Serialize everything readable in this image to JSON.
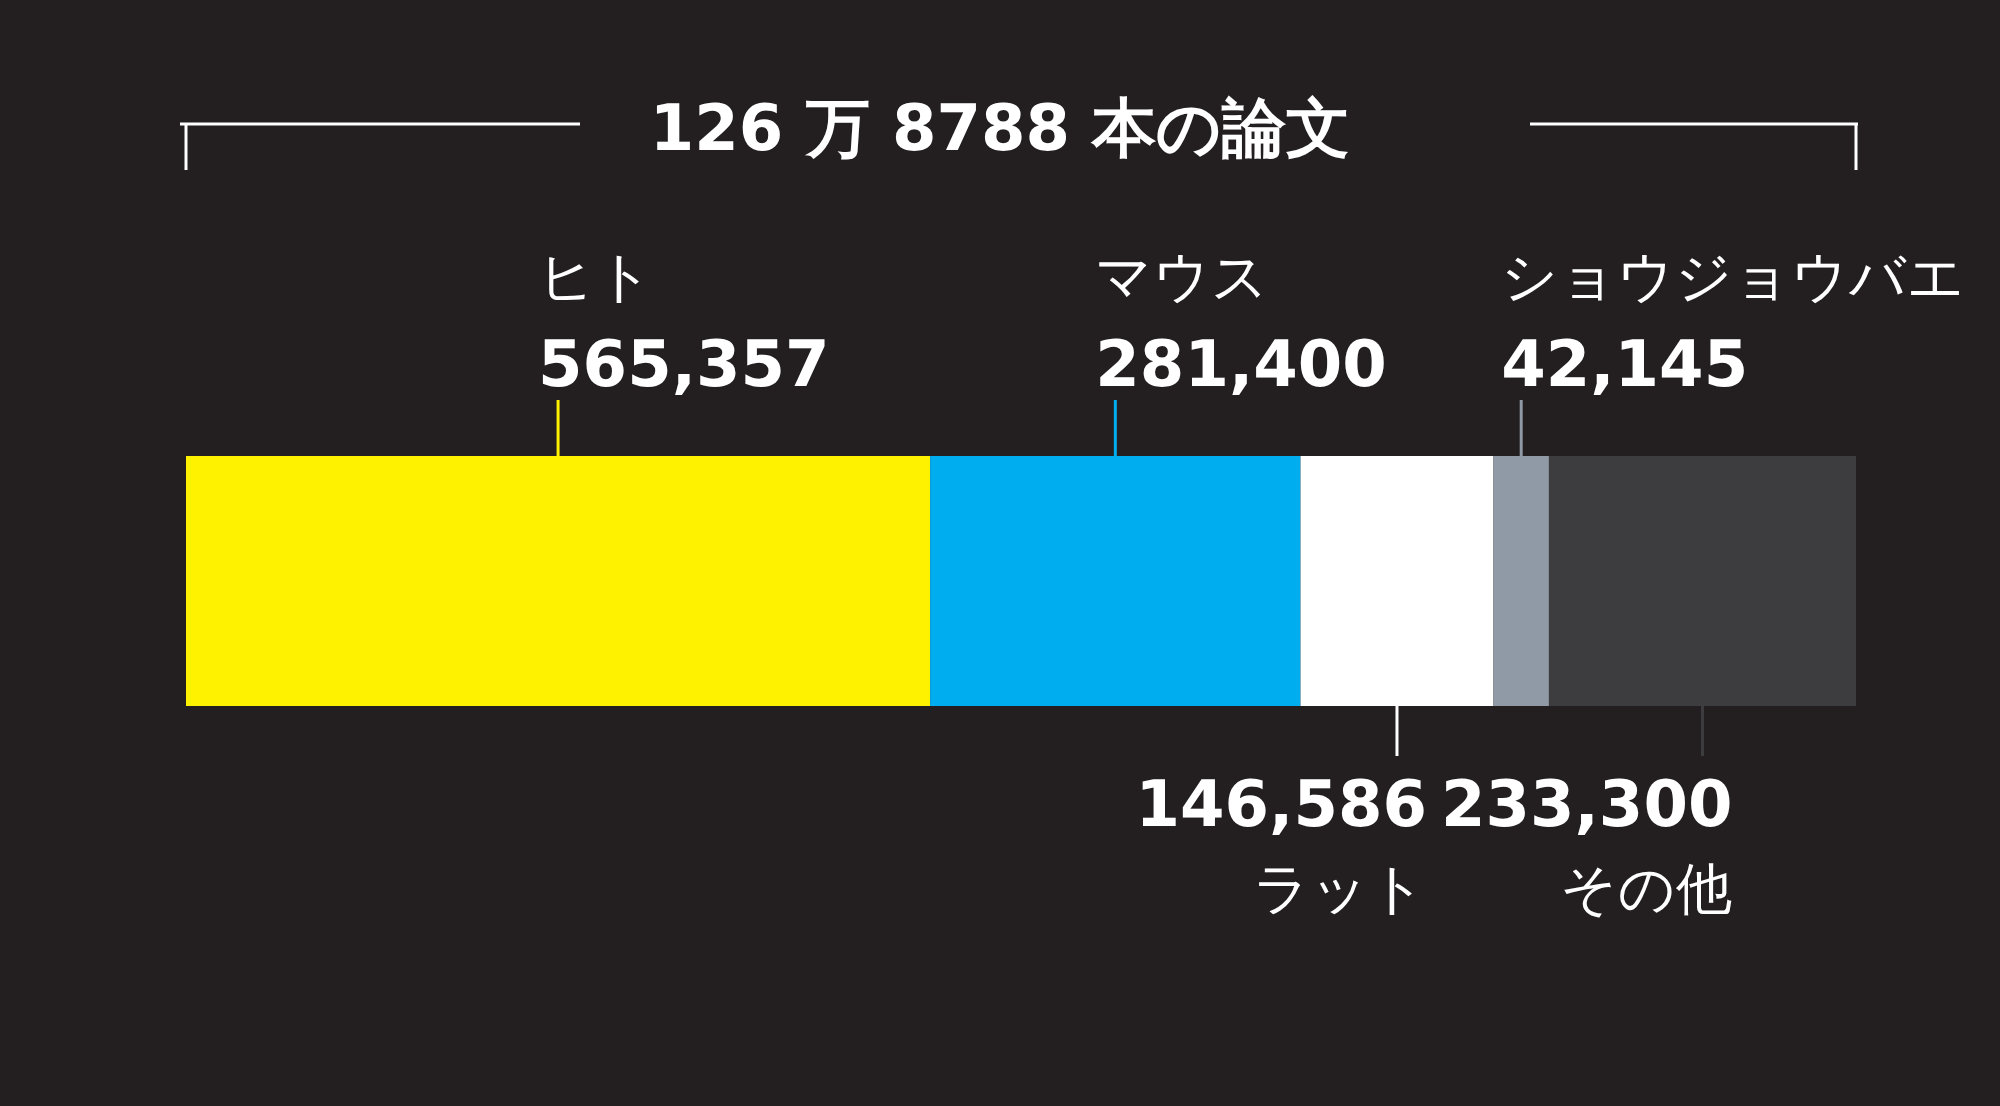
{
  "chart_data": {
    "type": "bar",
    "orientation": "horizontal",
    "stacked": true,
    "title": "126 万 8788 本の論文",
    "categories": [
      null
    ],
    "legend": false,
    "tick_labels": false,
    "series": [
      {
        "name": "ヒト",
        "color": "#fff200",
        "values": [
          565357
        ],
        "value_labels": [
          "565,357"
        ]
      },
      {
        "name": "マウス",
        "color": "#00aeef",
        "values": [
          281400
        ],
        "value_labels": [
          "281,400"
        ]
      },
      {
        "name": "ラット",
        "color": "#ffffff",
        "values": [
          146586
        ],
        "value_labels": [
          "146,586"
        ]
      },
      {
        "name": "ショウジョウバエ",
        "color": "#8f9aa6",
        "values": [
          42145
        ],
        "value_labels": [
          "42,145"
        ]
      },
      {
        "name": "その他",
        "color": "#3d3d40",
        "values": [
          233300
        ],
        "value_labels": [
          "233,300"
        ]
      }
    ]
  }
}
